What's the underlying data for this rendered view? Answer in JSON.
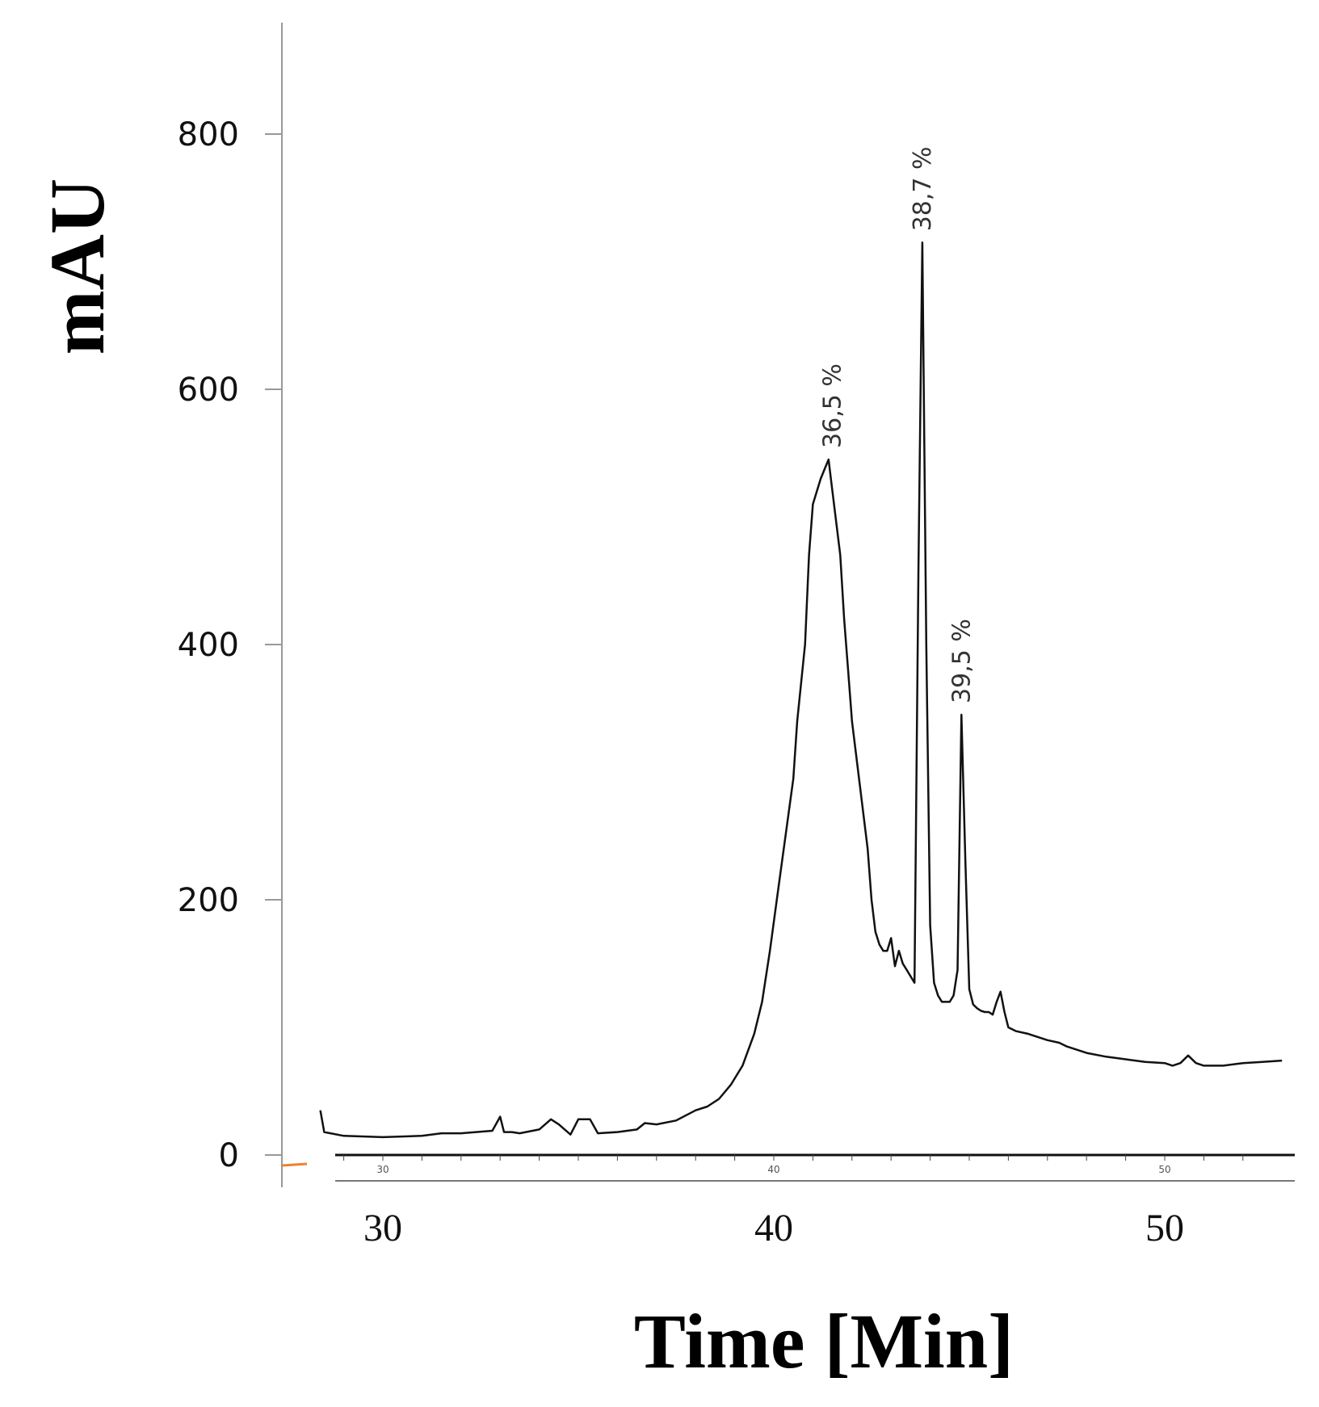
{
  "chart_data": {
    "type": "line",
    "ylabel": "mAU",
    "xlabel": "Time [Min]",
    "ylim": [
      -20,
      900
    ],
    "xlim": [
      28,
      53
    ],
    "y_ticks": [
      "0",
      "200",
      "400",
      "600",
      "800"
    ],
    "x_ticks": [
      "30",
      "40",
      "50"
    ],
    "grid": false,
    "series": [
      {
        "x": [
          28.4,
          28.5,
          29.0,
          30.0,
          31.0,
          31.5,
          32.0,
          32.8,
          33.0,
          33.1,
          33.3,
          33.5,
          34.0,
          34.3,
          34.5,
          34.8,
          35.0,
          35.3,
          35.5,
          36.0,
          36.5,
          36.7,
          37.0,
          37.5,
          38.0,
          38.3,
          38.6,
          38.9,
          39.2,
          39.5,
          39.7,
          39.9,
          40.1,
          40.3,
          40.5,
          40.6,
          40.8,
          40.9,
          41.0,
          41.2,
          41.4,
          41.5,
          41.7,
          41.8,
          41.9,
          42.0,
          42.2,
          42.4,
          42.5,
          42.6,
          42.7,
          42.8,
          42.9,
          43.0,
          43.1,
          43.2,
          43.3,
          43.4,
          43.5,
          43.6,
          43.7,
          43.8,
          43.9,
          44.0,
          44.1,
          44.2,
          44.3,
          44.5,
          44.6,
          44.7,
          44.8,
          44.9,
          45.0,
          45.1,
          45.2,
          45.3,
          45.4,
          45.5,
          45.6,
          45.7,
          45.8,
          45.9,
          46.0,
          46.2,
          46.5,
          47.0,
          47.3,
          47.5,
          48.0,
          48.5,
          49.0,
          49.5,
          50.0,
          50.2,
          50.4,
          50.6,
          50.8,
          51.0,
          51.5,
          52.0,
          52.5,
          53.0
        ],
        "y": [
          35,
          18,
          15,
          14,
          15,
          17,
          17,
          19,
          30,
          18,
          18,
          17,
          20,
          28,
          24,
          16,
          28,
          28,
          17,
          18,
          20,
          25,
          24,
          27,
          35,
          38,
          44,
          55,
          70,
          95,
          120,
          160,
          205,
          250,
          295,
          340,
          400,
          470,
          510,
          530,
          545,
          520,
          470,
          420,
          380,
          340,
          290,
          240,
          200,
          175,
          165,
          160,
          160,
          170,
          148,
          160,
          150,
          145,
          140,
          135,
          460,
          715,
          400,
          180,
          135,
          125,
          120,
          120,
          125,
          145,
          345,
          230,
          130,
          118,
          115,
          113,
          112,
          112,
          110,
          120,
          128,
          112,
          100,
          97,
          95,
          90,
          88,
          85,
          80,
          77,
          75,
          73,
          72,
          70,
          72,
          78,
          72,
          70,
          70,
          72,
          73,
          74
        ]
      }
    ],
    "annotations": [
      {
        "x": 41.5,
        "y": 545,
        "text": "36,5 %"
      },
      {
        "x": 43.8,
        "y": 715,
        "text": "38,7 %"
      },
      {
        "x": 44.8,
        "y": 345,
        "text": "39,5 %"
      }
    ],
    "mini_axis_ticks": [
      "30",
      "40",
      "50"
    ]
  }
}
